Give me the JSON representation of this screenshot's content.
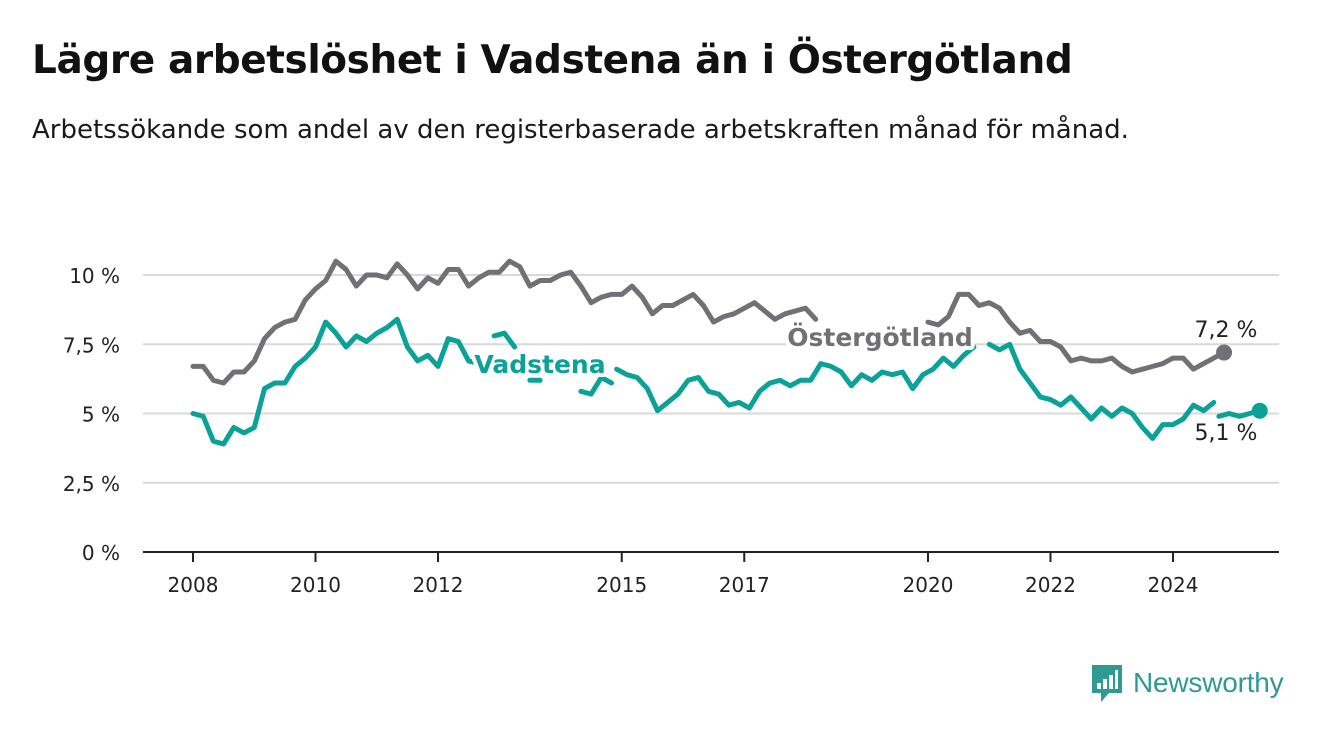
{
  "title": "Lägre arbetslöshet i Vadstena än i Östergötland",
  "subtitle": "Arbetssökande som andel av den registerbaserade arbetskraften månad för månad.",
  "brand": "Newsworthy",
  "colors": {
    "vadstena": "#0aa198",
    "ostergotland": "#717075",
    "grid": "#d9d9d9",
    "axis": "#222222",
    "brand": "#2f9a93"
  },
  "chart_data": {
    "type": "line",
    "x_label": "",
    "y_label": "",
    "y_ticks": [
      "0 %",
      "2,5 %",
      "5 %",
      "7,5 %",
      "10 %"
    ],
    "y_tick_values": [
      0,
      2.5,
      5,
      7.5,
      10
    ],
    "x_ticks": [
      "2008",
      "2010",
      "2012",
      "2015",
      "2017",
      "2020",
      "2022",
      "2024"
    ],
    "x_tick_values": [
      "2008-01",
      "2010-01",
      "2012-01",
      "2015-01",
      "2017-01",
      "2020-01",
      "2022-01",
      "2024-01"
    ],
    "x_range": [
      "2008-01",
      "2025-09"
    ],
    "y_range": [
      0,
      10.5
    ],
    "grid": true,
    "end_labels": {
      "ostergotland": "7,2 %",
      "vadstena": "5,1 %"
    },
    "series": [
      {
        "key": "ostergotland",
        "name": "Östergötland",
        "values": [
          [
            "2008-01",
            6.7
          ],
          [
            "2008-03",
            6.7
          ],
          [
            "2008-05",
            6.2
          ],
          [
            "2008-07",
            6.1
          ],
          [
            "2008-09",
            6.5
          ],
          [
            "2008-11",
            6.5
          ],
          [
            "2009-01",
            6.9
          ],
          [
            "2009-03",
            7.7
          ],
          [
            "2009-05",
            8.1
          ],
          [
            "2009-07",
            8.3
          ],
          [
            "2009-09",
            8.4
          ],
          [
            "2009-11",
            9.1
          ],
          [
            "2010-01",
            9.5
          ],
          [
            "2010-03",
            9.8
          ],
          [
            "2010-05",
            10.5
          ],
          [
            "2010-07",
            10.2
          ],
          [
            "2010-09",
            9.6
          ],
          [
            "2010-11",
            10.0
          ],
          [
            "2011-01",
            10.0
          ],
          [
            "2011-03",
            9.9
          ],
          [
            "2011-05",
            10.4
          ],
          [
            "2011-07",
            10.0
          ],
          [
            "2011-09",
            9.5
          ],
          [
            "2011-11",
            9.9
          ],
          [
            "2012-01",
            9.7
          ],
          [
            "2012-03",
            10.2
          ],
          [
            "2012-05",
            10.2
          ],
          [
            "2012-07",
            9.6
          ],
          [
            "2012-09",
            9.9
          ],
          [
            "2012-11",
            10.1
          ],
          [
            "2013-01",
            10.1
          ],
          [
            "2013-03",
            10.5
          ],
          [
            "2013-05",
            10.3
          ],
          [
            "2013-07",
            9.6
          ],
          [
            "2013-09",
            9.8
          ],
          [
            "2013-11",
            9.8
          ],
          [
            "2014-01",
            10.0
          ],
          [
            "2014-03",
            10.1
          ],
          [
            "2014-05",
            9.6
          ],
          [
            "2014-07",
            9.0
          ],
          [
            "2014-09",
            9.2
          ],
          [
            "2014-11",
            9.3
          ],
          [
            "2015-01",
            9.3
          ],
          [
            "2015-03",
            9.6
          ],
          [
            "2015-05",
            9.2
          ],
          [
            "2015-07",
            8.6
          ],
          [
            "2015-09",
            8.9
          ],
          [
            "2015-11",
            8.9
          ],
          [
            "2016-01",
            9.1
          ],
          [
            "2016-03",
            9.3
          ],
          [
            "2016-05",
            8.9
          ],
          [
            "2016-07",
            8.3
          ],
          [
            "2016-09",
            8.5
          ],
          [
            "2016-11",
            8.6
          ],
          [
            "2017-01",
            8.8
          ],
          [
            "2017-03",
            9.0
          ],
          [
            "2017-05",
            8.7
          ],
          [
            "2017-07",
            8.4
          ],
          [
            "2017-09",
            8.6
          ],
          [
            "2017-11",
            8.7
          ],
          [
            "2018-01",
            8.8
          ],
          [
            "2018-03",
            8.4
          ],
          null,
          [
            "2020-01",
            8.3
          ],
          [
            "2020-03",
            8.2
          ],
          [
            "2020-05",
            8.5
          ],
          [
            "2020-07",
            9.3
          ],
          [
            "2020-09",
            9.3
          ],
          [
            "2020-11",
            8.9
          ],
          [
            "2021-01",
            9.0
          ],
          [
            "2021-03",
            8.8
          ],
          [
            "2021-05",
            8.3
          ],
          [
            "2021-07",
            7.9
          ],
          [
            "2021-09",
            8.0
          ],
          [
            "2021-11",
            7.6
          ],
          [
            "2022-01",
            7.6
          ],
          [
            "2022-03",
            7.4
          ],
          [
            "2022-05",
            6.9
          ],
          [
            "2022-07",
            7.0
          ],
          [
            "2022-09",
            6.9
          ],
          [
            "2022-11",
            6.9
          ],
          [
            "2023-01",
            7.0
          ],
          [
            "2023-03",
            6.7
          ],
          [
            "2023-05",
            6.5
          ],
          [
            "2023-07",
            6.6
          ],
          [
            "2023-09",
            6.7
          ],
          [
            "2023-11",
            6.8
          ],
          [
            "2024-01",
            7.0
          ],
          [
            "2024-03",
            7.0
          ],
          [
            "2024-05",
            6.6
          ],
          [
            "2024-07",
            6.8
          ],
          [
            "2024-09",
            7.0
          ],
          [
            "2024-11",
            7.2
          ]
        ]
      },
      {
        "key": "vadstena",
        "name": "Vadstena",
        "values": [
          [
            "2008-01",
            5.0
          ],
          [
            "2008-03",
            4.9
          ],
          [
            "2008-05",
            4.0
          ],
          [
            "2008-07",
            3.9
          ],
          [
            "2008-09",
            4.5
          ],
          [
            "2008-11",
            4.3
          ],
          [
            "2009-01",
            4.5
          ],
          [
            "2009-03",
            5.9
          ],
          [
            "2009-05",
            6.1
          ],
          [
            "2009-07",
            6.1
          ],
          [
            "2009-09",
            6.7
          ],
          [
            "2009-11",
            7.0
          ],
          [
            "2010-01",
            7.4
          ],
          [
            "2010-03",
            8.3
          ],
          [
            "2010-05",
            7.9
          ],
          [
            "2010-07",
            7.4
          ],
          [
            "2010-09",
            7.8
          ],
          [
            "2010-11",
            7.6
          ],
          [
            "2011-01",
            7.9
          ],
          [
            "2011-03",
            8.1
          ],
          [
            "2011-05",
            8.4
          ],
          [
            "2011-07",
            7.4
          ],
          [
            "2011-09",
            6.9
          ],
          [
            "2011-11",
            7.1
          ],
          [
            "2012-01",
            6.7
          ],
          [
            "2012-03",
            7.7
          ],
          [
            "2012-05",
            7.6
          ],
          [
            "2012-07",
            6.9
          ],
          [
            "2012-09",
            6.8
          ],
          null,
          [
            "2012-12",
            7.8
          ],
          [
            "2013-02",
            7.9
          ],
          [
            "2013-04",
            7.4
          ],
          null,
          [
            "2013-07",
            6.2
          ],
          [
            "2013-09",
            6.2
          ],
          null,
          [
            "2014-05",
            5.8
          ],
          [
            "2014-07",
            5.7
          ],
          [
            "2014-09",
            6.3
          ],
          [
            "2014-11",
            6.1
          ],
          null,
          [
            "2014-12",
            6.6
          ],
          [
            "2015-02",
            6.4
          ],
          [
            "2015-04",
            6.3
          ],
          [
            "2015-06",
            5.9
          ],
          [
            "2015-08",
            5.1
          ],
          [
            "2015-10",
            5.4
          ],
          [
            "2015-12",
            5.7
          ],
          [
            "2016-02",
            6.2
          ],
          [
            "2016-04",
            6.3
          ],
          [
            "2016-06",
            5.8
          ],
          [
            "2016-08",
            5.7
          ],
          [
            "2016-10",
            5.3
          ],
          [
            "2016-12",
            5.4
          ],
          [
            "2017-02",
            5.2
          ],
          [
            "2017-04",
            5.8
          ],
          [
            "2017-06",
            6.1
          ],
          [
            "2017-08",
            6.2
          ],
          [
            "2017-10",
            6.0
          ],
          [
            "2017-12",
            6.2
          ],
          [
            "2018-02",
            6.2
          ],
          [
            "2018-04",
            6.8
          ],
          [
            "2018-06",
            6.7
          ],
          [
            "2018-08",
            6.5
          ],
          [
            "2018-10",
            6.0
          ],
          [
            "2018-12",
            6.4
          ],
          [
            "2019-02",
            6.2
          ],
          [
            "2019-04",
            6.5
          ],
          [
            "2019-06",
            6.4
          ],
          [
            "2019-08",
            6.5
          ],
          [
            "2019-10",
            5.9
          ],
          [
            "2019-12",
            6.4
          ],
          [
            "2020-02",
            6.6
          ],
          [
            "2020-04",
            7.0
          ],
          [
            "2020-06",
            6.7
          ],
          [
            "2020-08",
            7.1
          ],
          [
            "2020-10",
            7.4
          ],
          null,
          [
            "2021-01",
            7.5
          ],
          [
            "2021-03",
            7.3
          ],
          [
            "2021-05",
            7.5
          ],
          [
            "2021-07",
            6.6
          ],
          [
            "2021-09",
            6.1
          ],
          [
            "2021-11",
            5.6
          ],
          [
            "2022-01",
            5.5
          ],
          [
            "2022-03",
            5.3
          ],
          [
            "2022-05",
            5.6
          ],
          [
            "2022-07",
            5.2
          ],
          [
            "2022-09",
            4.8
          ],
          [
            "2022-11",
            5.2
          ],
          [
            "2023-01",
            4.9
          ],
          [
            "2023-03",
            5.2
          ],
          [
            "2023-05",
            5.0
          ],
          [
            "2023-07",
            4.5
          ],
          [
            "2023-09",
            4.1
          ],
          [
            "2023-11",
            4.6
          ],
          [
            "2024-01",
            4.6
          ],
          [
            "2024-03",
            4.8
          ],
          [
            "2024-05",
            5.3
          ],
          [
            "2024-07",
            5.1
          ],
          [
            "2024-09",
            5.4
          ],
          null,
          [
            "2024-10",
            4.9
          ],
          [
            "2024-12",
            5.0
          ],
          [
            "2025-02",
            4.9
          ],
          [
            "2025-04",
            5.0
          ],
          [
            "2025-06",
            5.1
          ]
        ]
      }
    ]
  }
}
